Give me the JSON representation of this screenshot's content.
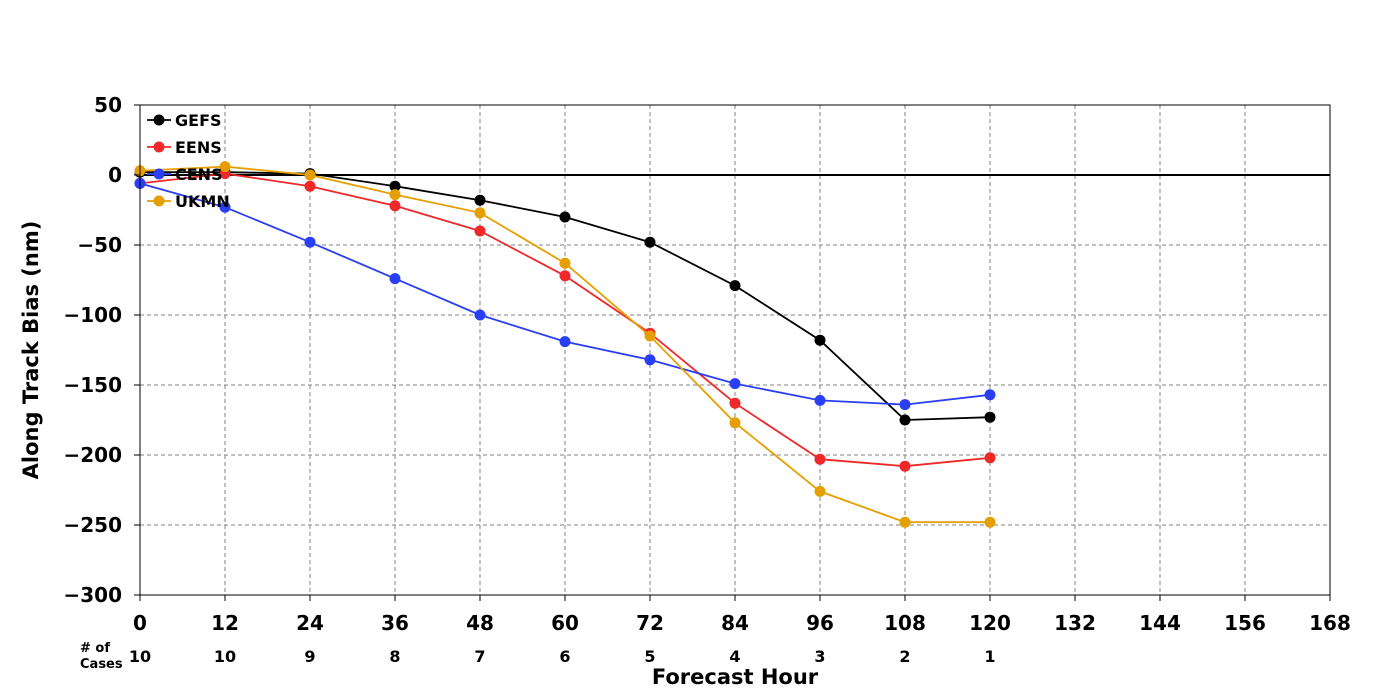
{
  "chart_data": {
    "type": "line",
    "xlabel": "Forecast Hour",
    "ylabel": "Along Track Bias (nm)",
    "xlim": [
      0,
      168
    ],
    "ylim": [
      -300,
      50
    ],
    "x_ticks": [
      0,
      12,
      24,
      36,
      48,
      60,
      72,
      84,
      96,
      108,
      120,
      132,
      144,
      156,
      168
    ],
    "y_ticks": [
      50,
      0,
      -50,
      -100,
      -150,
      -200,
      -250,
      -300
    ],
    "y_tick_labels": [
      "50",
      "0",
      "−50",
      "−100",
      "−150",
      "−200",
      "−250",
      "−300"
    ],
    "grid": true,
    "zero_line": true,
    "legend_position": "top-left",
    "x": [
      0,
      12,
      24,
      36,
      48,
      60,
      72,
      84,
      96,
      108,
      120
    ],
    "series": [
      {
        "name": "GEFS",
        "color": "#000000",
        "values": [
          2,
          2,
          1,
          -8,
          -18,
          -30,
          -48,
          -79,
          -118,
          -175,
          -173
        ]
      },
      {
        "name": "EENS",
        "color": "#ef2929",
        "values": [
          -6,
          1,
          -8,
          -22,
          -40,
          -72,
          -113,
          -163,
          -203,
          -208,
          -202
        ]
      },
      {
        "name": "CENS",
        "color": "#2a3ff5",
        "values": [
          -6,
          -23,
          -48,
          -74,
          -100,
          -119,
          -132,
          -149,
          -161,
          -164,
          -157
        ]
      },
      {
        "name": "UKMN",
        "color": "#e69f00",
        "values": [
          3,
          6,
          0,
          -14,
          -27,
          -63,
          -115,
          -177,
          -226,
          -248,
          -248
        ]
      }
    ],
    "cases": {
      "header_line1": "# of",
      "header_line2": "Cases",
      "hours": [
        0,
        12,
        24,
        36,
        48,
        60,
        72,
        84,
        96,
        108,
        120
      ],
      "values": [
        "10",
        "10",
        "9",
        "8",
        "7",
        "6",
        "5",
        "4",
        "3",
        "2",
        "1"
      ]
    }
  }
}
